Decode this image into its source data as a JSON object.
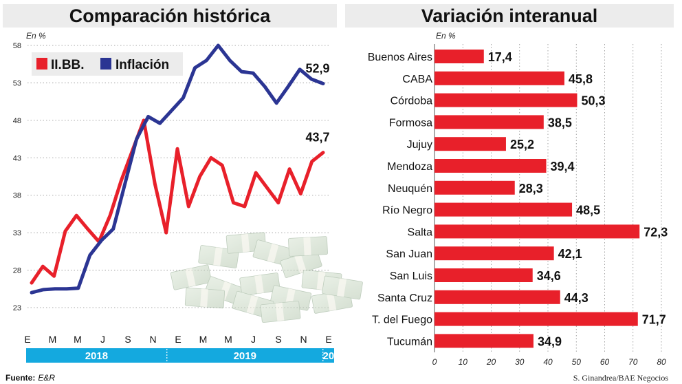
{
  "left_title": "Comparación histórica",
  "right_title": "Variación interanual",
  "left_unit": "En %",
  "right_unit": "En %",
  "source_label": "Fuente:",
  "source_value": "E&R",
  "credit": "S. Ginandrea/BAE Negocios",
  "colors": {
    "iibb": "#e8202a",
    "inflacion": "#2b3593",
    "bar": "#e8202a",
    "year_band": "#14a9df"
  },
  "chart_data": [
    {
      "type": "line",
      "title": "Comparación histórica",
      "ylabel": "En %",
      "ylim": [
        23,
        58
      ],
      "yticks": [
        23,
        28,
        33,
        38,
        43,
        48,
        53,
        58
      ],
      "x_tick_labels": [
        "E",
        "M",
        "M",
        "J",
        "S",
        "N",
        "E",
        "M",
        "M",
        "J",
        "S",
        "N",
        "E"
      ],
      "years": [
        "2018",
        "2019",
        "20"
      ],
      "legend_position": "top-left",
      "series": [
        {
          "name": "II.BB.",
          "color": "#e8202a",
          "end_label": "43,7",
          "values": [
            26.3,
            28.5,
            27.2,
            33.2,
            35.3,
            33.5,
            31.8,
            35.3,
            40.0,
            44.0,
            48.0,
            39.5,
            33.0,
            44.2,
            36.5,
            40.5,
            43.0,
            42.0,
            37.0,
            36.5,
            41.0,
            39.0,
            37.0,
            41.5,
            38.2,
            42.5,
            43.7
          ]
        },
        {
          "name": "Inflación",
          "color": "#2b3593",
          "end_label": "52,9",
          "values": [
            25.0,
            25.4,
            25.5,
            25.5,
            25.6,
            30.0,
            32.0,
            33.5,
            39.5,
            45.5,
            48.5,
            47.6,
            49.3,
            51.0,
            55.0,
            56.0,
            58.0,
            56.0,
            54.5,
            54.3,
            52.5,
            50.3,
            52.5,
            54.8,
            53.5,
            52.9
          ]
        }
      ]
    },
    {
      "type": "bar",
      "orientation": "horizontal",
      "title": "Variación interanual",
      "xlabel": "En %",
      "xlim": [
        0,
        80
      ],
      "xticks": [
        0,
        10,
        20,
        30,
        40,
        50,
        60,
        70,
        80
      ],
      "categories": [
        "Buenos Aires",
        "CABA",
        "Córdoba",
        "Formosa",
        "Jujuy",
        "Mendoza",
        "Neuquén",
        "Río Negro",
        "Salta",
        "San Juan",
        "San Luis",
        "Santa Cruz",
        "T. del Fuego",
        "Tucumán"
      ],
      "values": [
        17.4,
        45.8,
        50.3,
        38.5,
        25.2,
        39.4,
        28.3,
        48.5,
        72.3,
        42.1,
        34.6,
        44.3,
        71.7,
        34.9
      ],
      "value_labels": [
        "17,4",
        "45,8",
        "50,3",
        "38,5",
        "25,2",
        "39,4",
        "28,3",
        "48,5",
        "72,3",
        "42,1",
        "34,6",
        "44,3",
        "71,7",
        "34,9"
      ]
    }
  ]
}
